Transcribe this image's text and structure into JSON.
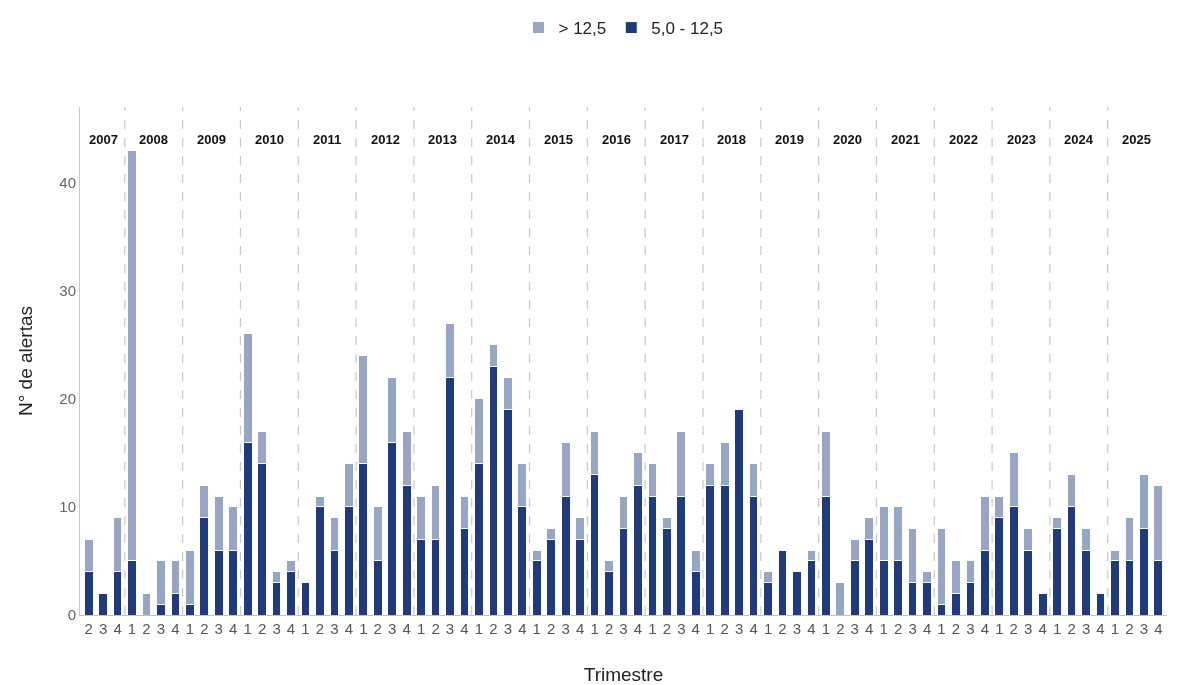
{
  "chart_data": {
    "type": "bar",
    "stacked": true,
    "xlabel": "Trimestre",
    "ylabel": "N° de alertas",
    "categories": [
      "2",
      "3",
      "4",
      "1",
      "2",
      "3",
      "4",
      "1",
      "2",
      "3",
      "4",
      "1",
      "2",
      "3",
      "4",
      "1",
      "2",
      "3",
      "4",
      "1",
      "2",
      "3",
      "4",
      "1",
      "2",
      "3",
      "4",
      "1",
      "2",
      "3",
      "4",
      "1",
      "2",
      "3",
      "4",
      "1",
      "2",
      "3",
      "4",
      "1",
      "2",
      "3",
      "4",
      "1",
      "2",
      "3",
      "4",
      "1",
      "2",
      "3",
      "4",
      "1",
      "2",
      "3",
      "4",
      "1",
      "2",
      "3",
      "4",
      "1",
      "2",
      "3",
      "4",
      "1",
      "2",
      "3",
      "4",
      "1",
      "2",
      "3",
      "4",
      "1",
      "2",
      "3",
      "4"
    ],
    "series": [
      {
        "name": "5,0 - 12,5",
        "color": "#1f3a7d",
        "values": [
          4,
          2,
          4,
          5,
          0,
          1,
          2,
          1,
          9,
          6,
          6,
          16,
          14,
          3,
          4,
          3,
          10,
          6,
          10,
          14,
          5,
          16,
          12,
          7,
          7,
          22,
          8,
          14,
          23,
          19,
          10,
          5,
          7,
          11,
          7,
          13,
          4,
          8,
          12,
          11,
          8,
          11,
          4,
          12,
          12,
          19,
          11,
          3,
          6,
          4,
          5,
          11,
          0,
          5,
          7,
          5,
          5,
          3,
          3,
          1,
          2,
          3,
          6,
          9,
          10,
          6,
          2,
          8,
          10,
          6,
          2,
          5,
          5,
          8,
          5
        ]
      },
      {
        "name": "> 12,5",
        "color": "#97a6c4",
        "values": [
          3,
          0,
          5,
          38,
          2,
          4,
          3,
          5,
          3,
          5,
          4,
          10,
          3,
          1,
          1,
          0,
          1,
          3,
          4,
          10,
          5,
          6,
          5,
          4,
          5,
          5,
          3,
          6,
          2,
          3,
          4,
          1,
          1,
          5,
          2,
          4,
          1,
          3,
          3,
          3,
          1,
          6,
          2,
          2,
          4,
          0,
          3,
          1,
          0,
          0,
          1,
          6,
          3,
          2,
          2,
          5,
          5,
          5,
          1,
          7,
          3,
          2,
          5,
          2,
          5,
          2,
          0,
          1,
          3,
          2,
          0,
          1,
          4,
          5,
          7
        ]
      }
    ],
    "annotations": [
      "2007",
      "2008",
      "2009",
      "2010",
      "2011",
      "2012",
      "2013",
      "2014",
      "2015",
      "2016",
      "2017",
      "2018",
      "2019",
      "2020",
      "2021",
      "2022",
      "2023",
      "2024",
      "2025"
    ],
    "ylim": [
      0,
      47
    ],
    "yticks": [
      0,
      10,
      20,
      30,
      40
    ],
    "grid": false,
    "legend": "top"
  }
}
